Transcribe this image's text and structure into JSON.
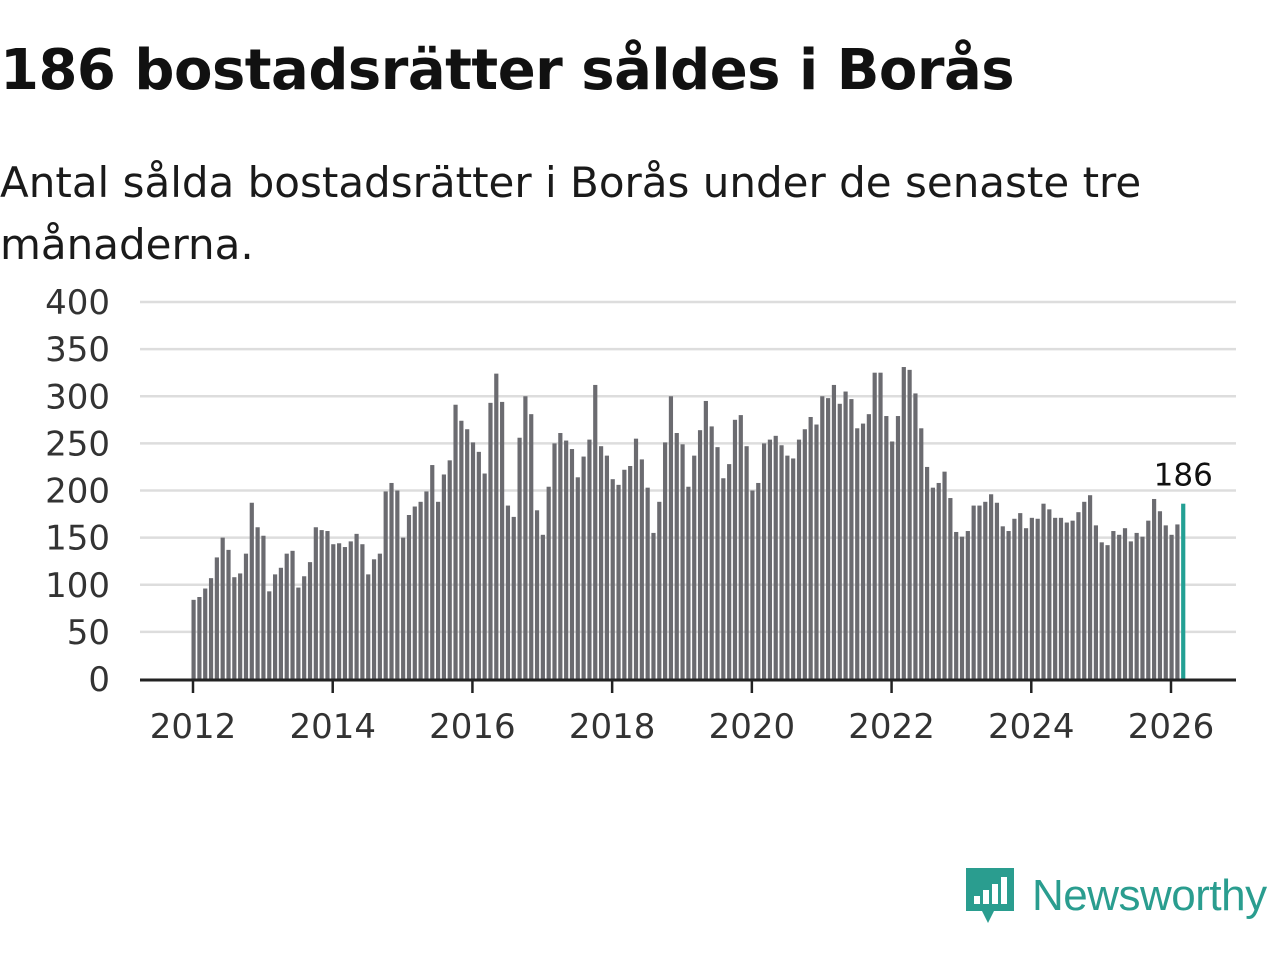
{
  "title": "186 bostadsrätter såldes i Borås",
  "subtitle": "Antal sålda bostadsrätter i Borås under de senaste tre månaderna.",
  "brand": {
    "name": "Newsworthy",
    "icon": "newsworthy-logo-icon"
  },
  "colors": {
    "bar": "#6b6b70",
    "highlight": "#23a094",
    "grid": "#dddddd",
    "axis": "#222222",
    "brand": "#2a9d8f"
  },
  "chart_data": {
    "type": "bar",
    "title": "186 bostadsrätter såldes i Borås",
    "xlabel": "",
    "ylabel": "",
    "ylim": [
      0,
      400
    ],
    "yticks": [
      "0",
      "50",
      "100",
      "150",
      "200",
      "250",
      "300",
      "350",
      "400"
    ],
    "xticks": [
      "2012",
      "2014",
      "2016",
      "2018",
      "2020",
      "2022",
      "2024",
      "2026"
    ],
    "x_start_year": 2012,
    "x_start_month": 1,
    "series": [
      {
        "name": "Antal sålda bostadsrätter",
        "values": [
          84,
          87,
          96,
          107,
          129,
          150,
          137,
          108,
          112,
          133,
          187,
          161,
          152,
          93,
          111,
          118,
          133,
          136,
          97,
          109,
          124,
          161,
          158,
          157,
          143,
          144,
          140,
          146,
          154,
          143,
          111,
          127,
          133,
          199,
          208,
          200,
          150,
          174,
          183,
          188,
          199,
          227,
          188,
          217,
          232,
          291,
          274,
          265,
          251,
          241,
          218,
          293,
          324,
          294,
          184,
          172,
          256,
          300,
          281,
          179,
          153,
          204,
          250,
          261,
          253,
          244,
          214,
          236,
          254,
          312,
          247,
          237,
          212,
          206,
          222,
          226,
          255,
          233,
          203,
          155,
          188,
          251,
          300,
          261,
          249,
          204,
          237,
          264,
          295,
          268,
          246,
          213,
          228,
          275,
          280,
          247,
          200,
          208,
          250,
          254,
          258,
          248,
          237,
          234,
          254,
          265,
          278,
          270,
          300,
          298,
          312,
          292,
          305,
          297,
          266,
          271,
          281,
          325,
          325,
          279,
          252,
          279,
          331,
          328,
          303,
          266,
          225,
          203,
          208,
          220,
          192,
          156,
          151,
          157,
          184,
          184,
          188,
          196,
          187,
          162,
          157,
          170,
          176,
          160,
          171,
          170,
          186,
          180,
          171,
          171,
          166,
          168,
          177,
          188,
          195,
          163,
          145,
          142,
          157,
          153,
          160,
          146,
          155,
          151,
          168,
          191,
          178,
          163,
          153,
          164,
          186
        ]
      }
    ],
    "highlight_value": "186"
  }
}
